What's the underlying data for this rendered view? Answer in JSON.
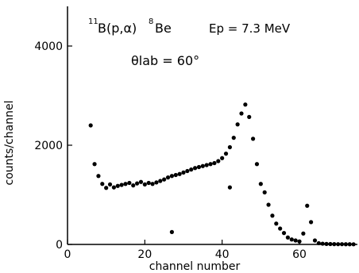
{
  "chart_data": {
    "type": "scatter",
    "xlabel": "channel number",
    "ylabel": "counts/channel",
    "xlim": [
      0,
      75
    ],
    "ylim": [
      0,
      4800
    ],
    "x_ticks": [
      0,
      20,
      40,
      60
    ],
    "y_ticks": [
      0,
      2000,
      4000
    ],
    "grid": false,
    "annotations": {
      "reaction_nuclide_a": "11",
      "reaction_text": "B(p,α)",
      "reaction_nuclide_b": "8",
      "reaction_text_b": "Be",
      "energy": "Ep = 7.3 MeV",
      "angle": "θlab = 60°"
    },
    "series": [
      {
        "points": [
          [
            6,
            2400
          ],
          [
            7,
            1620
          ],
          [
            8,
            1380
          ],
          [
            9,
            1220
          ],
          [
            10,
            1140
          ],
          [
            11,
            1210
          ],
          [
            12,
            1150
          ],
          [
            13,
            1180
          ],
          [
            14,
            1200
          ],
          [
            15,
            1220
          ],
          [
            16,
            1240
          ],
          [
            17,
            1190
          ],
          [
            18,
            1230
          ],
          [
            19,
            1260
          ],
          [
            20,
            1210
          ],
          [
            21,
            1240
          ],
          [
            22,
            1220
          ],
          [
            23,
            1250
          ],
          [
            24,
            1280
          ],
          [
            25,
            1310
          ],
          [
            26,
            1350
          ],
          [
            27,
            1380
          ],
          [
            28,
            1400
          ],
          [
            29,
            1420
          ],
          [
            30,
            1450
          ],
          [
            31,
            1480
          ],
          [
            32,
            1510
          ],
          [
            33,
            1540
          ],
          [
            34,
            1560
          ],
          [
            35,
            1580
          ],
          [
            36,
            1600
          ],
          [
            37,
            1620
          ],
          [
            38,
            1640
          ],
          [
            39,
            1680
          ],
          [
            40,
            1740
          ],
          [
            41,
            1830
          ],
          [
            42,
            1960
          ],
          [
            43,
            2150
          ],
          [
            44,
            2420
          ],
          [
            45,
            2640
          ],
          [
            46,
            2820
          ],
          [
            47,
            2570
          ],
          [
            48,
            2130
          ],
          [
            49,
            1620
          ],
          [
            50,
            1220
          ],
          [
            51,
            1050
          ],
          [
            52,
            800
          ],
          [
            53,
            580
          ],
          [
            54,
            420
          ],
          [
            55,
            320
          ],
          [
            56,
            230
          ],
          [
            57,
            140
          ],
          [
            58,
            100
          ],
          [
            59,
            80
          ],
          [
            60,
            60
          ],
          [
            61,
            220
          ],
          [
            62,
            780
          ],
          [
            63,
            450
          ],
          [
            64,
            80
          ],
          [
            65,
            25
          ],
          [
            66,
            15
          ],
          [
            67,
            10
          ],
          [
            68,
            8
          ],
          [
            69,
            6
          ],
          [
            70,
            5
          ],
          [
            71,
            5
          ],
          [
            72,
            4
          ],
          [
            73,
            4
          ],
          [
            74,
            3
          ],
          [
            42,
            1150
          ],
          [
            27,
            250
          ]
        ]
      }
    ]
  }
}
